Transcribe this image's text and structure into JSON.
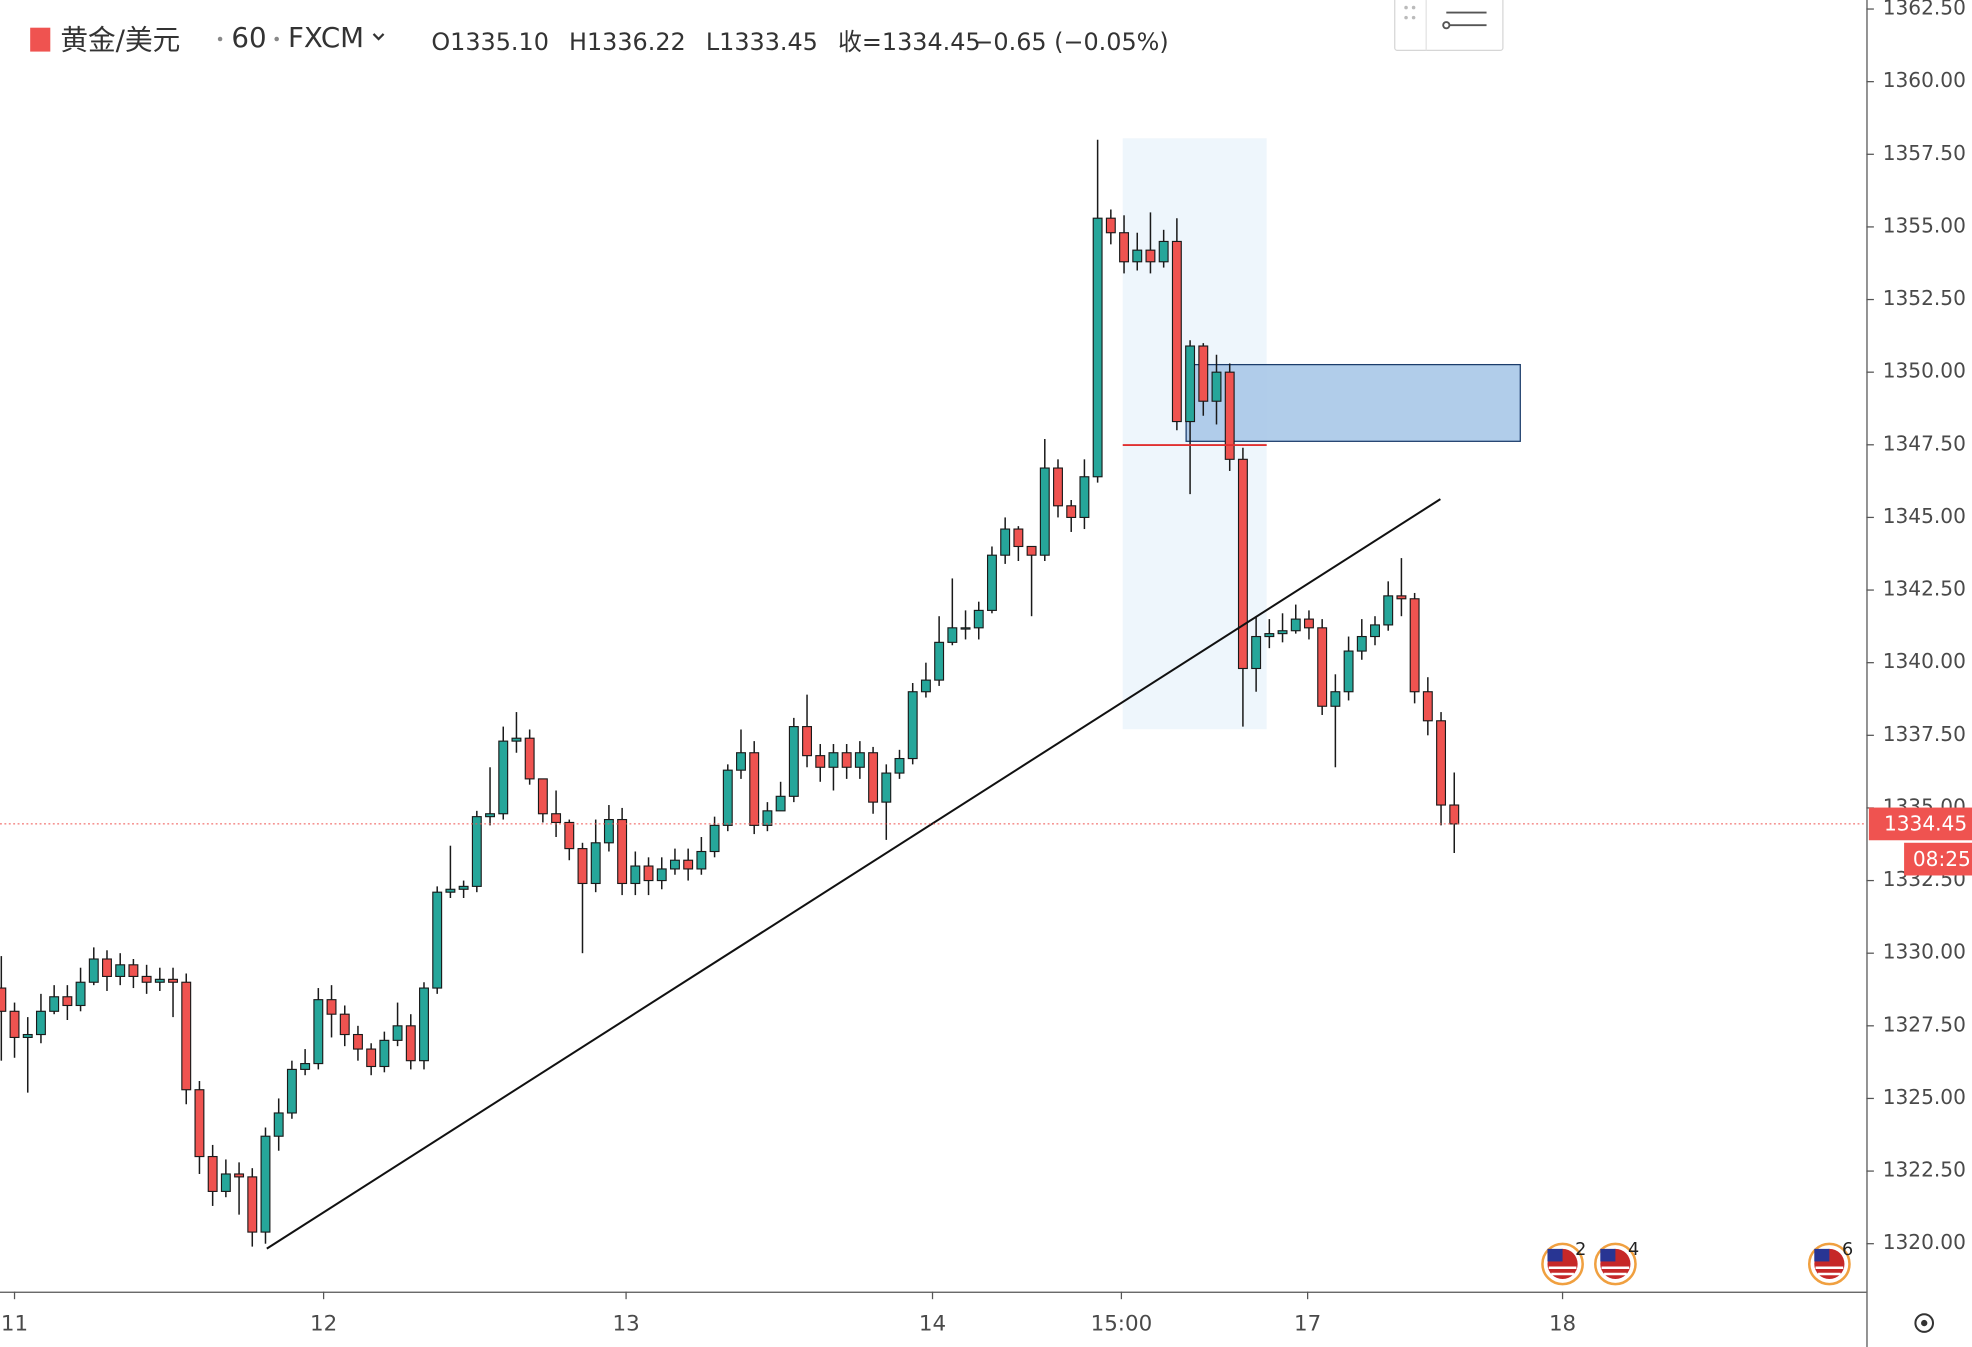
{
  "header": {
    "symbol": "黄金/美元",
    "interval": "60",
    "exchange": "FXCM",
    "ohlc": [
      {
        "label": "O",
        "value": "1335.10"
      },
      {
        "label": "H",
        "value": "1336.22"
      },
      {
        "label": "L",
        "value": "1333.45"
      },
      {
        "label": "收=",
        "value": "1334.45"
      }
    ],
    "change": "−0.65 (−0.05%)"
  },
  "chart_data": {
    "type": "candlestick",
    "open": [
      1328.8,
      1328.0,
      1327.1,
      1327.2,
      1328.0,
      1328.5,
      1328.2,
      1329.0,
      1329.8,
      1329.2,
      1329.6,
      1329.2,
      1329.0,
      1329.1,
      1329.0,
      1325.3,
      1323.0,
      1321.8,
      1322.4,
      1322.3,
      1320.4,
      1323.7,
      1324.5,
      1326.0,
      1326.2,
      1328.4,
      1327.9,
      1327.2,
      1326.7,
      1326.1,
      1327.0,
      1327.5,
      1326.3,
      1328.8,
      1332.1,
      1332.2,
      1332.3,
      1334.7,
      1334.8,
      1337.3,
      1337.4,
      1336.0,
      1334.8,
      1334.5,
      1333.6,
      1332.4,
      1333.8,
      1334.6,
      1332.4,
      1333.0,
      1332.5,
      1332.9,
      1333.2,
      1332.9,
      1333.5,
      1334.4,
      1336.3,
      1336.9,
      1334.4,
      1334.9,
      1335.4,
      1337.8,
      1336.8,
      1336.4,
      1336.9,
      1336.4,
      1336.9,
      1335.2,
      1336.2,
      1336.7,
      1339.0,
      1339.4,
      1340.7,
      1341.2,
      1341.2,
      1341.8,
      1343.7,
      1344.6,
      1344.0,
      1343.7,
      1346.7,
      1345.4,
      1345.0,
      1346.4,
      1355.3,
      1354.8,
      1353.8,
      1354.2,
      1353.8,
      1354.5,
      1348.3,
      1350.9,
      1349.0,
      1350.0,
      1347.0,
      1339.8,
      1340.9,
      1341.0,
      1341.1,
      1341.5,
      1341.2,
      1338.5,
      1339.0,
      1340.4,
      1340.9,
      1341.3,
      1342.3,
      1342.2,
      1339.0,
      1338.0,
      1335.1
    ],
    "high": [
      1329.9,
      1328.3,
      1327.8,
      1328.6,
      1328.9,
      1328.9,
      1329.5,
      1330.2,
      1330.1,
      1330.0,
      1329.8,
      1329.6,
      1329.5,
      1329.5,
      1329.3,
      1325.6,
      1323.4,
      1322.9,
      1322.8,
      1322.6,
      1324.0,
      1325.0,
      1326.3,
      1326.7,
      1328.8,
      1328.9,
      1328.2,
      1327.5,
      1326.9,
      1327.3,
      1328.3,
      1327.9,
      1329.0,
      1332.3,
      1333.7,
      1332.5,
      1334.9,
      1336.4,
      1337.8,
      1338.3,
      1337.7,
      1336.0,
      1335.6,
      1334.6,
      1333.8,
      1334.6,
      1335.1,
      1335.0,
      1333.5,
      1333.3,
      1333.3,
      1333.6,
      1333.6,
      1334.0,
      1334.7,
      1336.5,
      1337.7,
      1337.3,
      1335.2,
      1335.9,
      1338.1,
      1338.9,
      1337.2,
      1337.2,
      1337.2,
      1337.3,
      1337.1,
      1336.5,
      1337.0,
      1339.3,
      1340.0,
      1341.6,
      1342.9,
      1341.8,
      1342.1,
      1344.0,
      1345.0,
      1344.7,
      1344.0,
      1347.7,
      1347.0,
      1345.6,
      1347.0,
      1358.0,
      1355.6,
      1355.4,
      1354.8,
      1355.5,
      1354.9,
      1355.3,
      1351.1,
      1351.0,
      1350.6,
      1350.3,
      1347.4,
      1341.6,
      1341.5,
      1341.7,
      1342.0,
      1341.8,
      1341.5,
      1339.6,
      1340.9,
      1341.5,
      1341.6,
      1342.8,
      1343.6,
      1342.4,
      1339.5,
      1338.3,
      1336.22
    ],
    "low": [
      1326.3,
      1326.4,
      1325.2,
      1326.9,
      1327.9,
      1327.7,
      1328.0,
      1328.9,
      1328.7,
      1328.9,
      1328.8,
      1328.6,
      1328.7,
      1327.8,
      1324.8,
      1322.4,
      1321.3,
      1321.6,
      1321.0,
      1319.9,
      1320.0,
      1323.2,
      1324.3,
      1325.8,
      1326.0,
      1327.1,
      1326.8,
      1326.3,
      1325.8,
      1325.9,
      1326.8,
      1326.0,
      1326.0,
      1328.6,
      1331.9,
      1331.9,
      1332.1,
      1334.4,
      1334.6,
      1336.9,
      1335.8,
      1334.5,
      1334.0,
      1333.2,
      1330.0,
      1332.1,
      1333.5,
      1332.0,
      1332.0,
      1332.0,
      1332.2,
      1332.7,
      1332.5,
      1332.7,
      1333.3,
      1334.2,
      1336.0,
      1334.1,
      1334.2,
      1335.1,
      1335.2,
      1336.4,
      1335.9,
      1335.6,
      1336.0,
      1336.0,
      1334.8,
      1333.9,
      1336.0,
      1336.5,
      1338.8,
      1339.2,
      1340.6,
      1340.8,
      1340.8,
      1341.7,
      1343.4,
      1343.5,
      1341.6,
      1343.5,
      1345.0,
      1344.5,
      1344.6,
      1346.2,
      1354.4,
      1353.4,
      1353.5,
      1353.4,
      1353.6,
      1348.0,
      1345.8,
      1348.5,
      1348.2,
      1346.6,
      1337.8,
      1339.0,
      1340.5,
      1340.7,
      1341.0,
      1340.8,
      1338.2,
      1336.4,
      1338.7,
      1340.1,
      1340.6,
      1341.1,
      1341.6,
      1338.6,
      1337.5,
      1334.4,
      1333.45
    ],
    "close": [
      1328.0,
      1327.1,
      1327.2,
      1328.0,
      1328.5,
      1328.2,
      1329.0,
      1329.8,
      1329.2,
      1329.6,
      1329.2,
      1329.0,
      1329.1,
      1329.0,
      1325.3,
      1323.0,
      1321.8,
      1322.4,
      1322.3,
      1320.4,
      1323.7,
      1324.5,
      1326.0,
      1326.2,
      1328.4,
      1327.9,
      1327.2,
      1326.7,
      1326.1,
      1327.0,
      1327.5,
      1326.3,
      1328.8,
      1332.1,
      1332.2,
      1332.3,
      1334.7,
      1334.8,
      1337.3,
      1337.4,
      1336.0,
      1334.8,
      1334.5,
      1333.6,
      1332.4,
      1333.8,
      1334.6,
      1332.4,
      1333.0,
      1332.5,
      1332.9,
      1333.2,
      1332.9,
      1333.5,
      1334.4,
      1336.3,
      1336.9,
      1334.4,
      1334.9,
      1335.4,
      1337.8,
      1336.8,
      1336.4,
      1336.9,
      1336.4,
      1336.9,
      1335.2,
      1336.2,
      1336.7,
      1339.0,
      1339.4,
      1340.7,
      1341.2,
      1341.2,
      1341.8,
      1343.7,
      1344.6,
      1344.0,
      1343.7,
      1346.7,
      1345.4,
      1345.0,
      1346.4,
      1355.3,
      1354.8,
      1353.8,
      1354.2,
      1353.8,
      1354.5,
      1348.3,
      1350.9,
      1349.0,
      1350.0,
      1347.0,
      1339.8,
      1340.9,
      1341.0,
      1341.1,
      1341.5,
      1341.2,
      1338.5,
      1339.0,
      1340.4,
      1340.9,
      1341.3,
      1342.3,
      1342.2,
      1339.0,
      1338.0,
      1335.1,
      1334.45
    ],
    "up_color": "#26a69a",
    "down_color": "#ef5350",
    "xlim": [
      -0.1,
      141.2
    ],
    "xticks": [
      {
        "value": 1,
        "label": "11"
      },
      {
        "value": 24.4,
        "label": "12"
      },
      {
        "value": 47.3,
        "label": "13"
      },
      {
        "value": 70.5,
        "label": "14"
      },
      {
        "value": 84.8,
        "label": "15:00"
      },
      {
        "value": 98.9,
        "label": "17"
      },
      {
        "value": 118.2,
        "label": "18"
      }
    ],
    "ylim": [
      1318.35,
      1362.81
    ],
    "yticks": [
      {
        "value": 1320,
        "label": "1320.00"
      },
      {
        "value": 1322.5,
        "label": "1322.50"
      },
      {
        "value": 1325,
        "label": "1325.00"
      },
      {
        "value": 1327.5,
        "label": "1327.50"
      },
      {
        "value": 1330,
        "label": "1330.00"
      },
      {
        "value": 1332.5,
        "label": "1332.50"
      },
      {
        "value": 1335,
        "label": "1335.00"
      },
      {
        "value": 1337.5,
        "label": "1337.50"
      },
      {
        "value": 1340,
        "label": "1340.00"
      },
      {
        "value": 1342.5,
        "label": "1342.50"
      },
      {
        "value": 1345,
        "label": "1345.00"
      },
      {
        "value": 1347.5,
        "label": "1347.50"
      },
      {
        "value": 1350,
        "label": "1350.00"
      },
      {
        "value": 1352.5,
        "label": "1352.50"
      },
      {
        "value": 1355,
        "label": "1355.00"
      },
      {
        "value": 1357.5,
        "label": "1357.50"
      },
      {
        "value": 1360,
        "label": "1360.00"
      },
      {
        "value": 1362.5,
        "label": "1362.50"
      }
    ],
    "last_price": 1334.45,
    "countdown": "08:25",
    "trendline": {
      "x": [
        20.1,
        108.95
      ],
      "y": [
        1319.83,
        1345.63
      ]
    },
    "zone": {
      "x": [
        89.7,
        115.0
      ],
      "y": [
        1347.62,
        1350.26
      ]
    },
    "poc": {
      "x": [
        84.9,
        95.8
      ],
      "y": 1347.49
    },
    "profile_range": {
      "x": [
        84.9,
        95.8
      ],
      "y": [
        1337.71,
        1358.05
      ]
    },
    "events": [
      {
        "x": 118.2,
        "count": 2
      },
      {
        "x": 122.2,
        "count": 4
      },
      {
        "x": 138.4,
        "count": 6
      }
    ]
  }
}
